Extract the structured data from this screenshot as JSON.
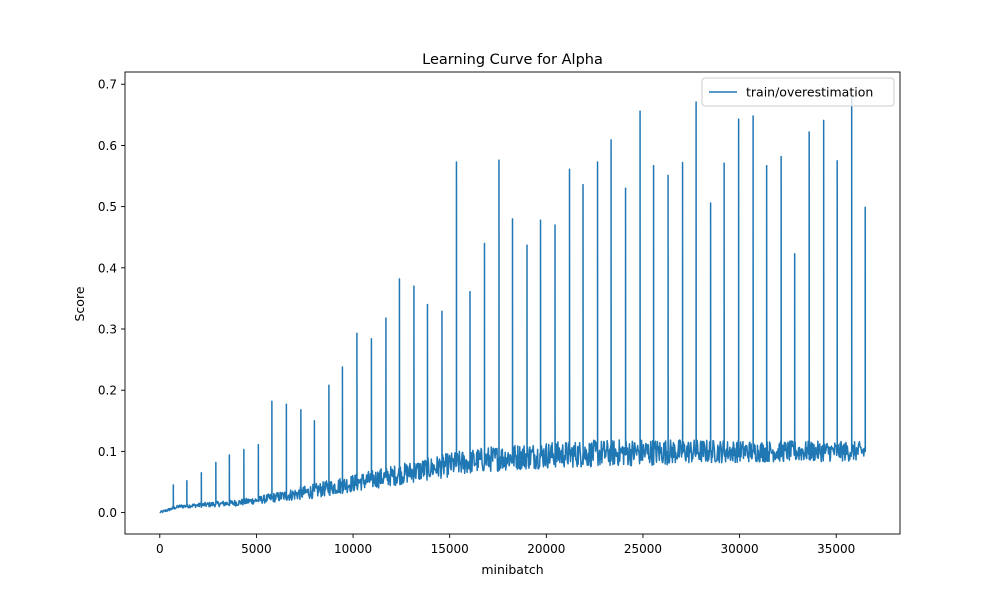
{
  "chart_data": {
    "type": "line",
    "title": "Learning Curve for Alpha",
    "xlabel": "minibatch",
    "ylabel": "Score",
    "xlim": [
      -1800,
      38300
    ],
    "ylim": [
      -0.035,
      0.72
    ],
    "xticks": [
      0,
      5000,
      10000,
      15000,
      20000,
      25000,
      30000,
      35000
    ],
    "xtick_labels": [
      "0",
      "5000",
      "10000",
      "15000",
      "20000",
      "25000",
      "30000",
      "35000"
    ],
    "yticks": [
      0.0,
      0.1,
      0.2,
      0.3,
      0.4,
      0.5,
      0.6,
      0.7
    ],
    "ytick_labels": [
      "0.0",
      "0.1",
      "0.2",
      "0.3",
      "0.4",
      "0.5",
      "0.6",
      "0.7"
    ],
    "grid": false,
    "legend_position": "top-right",
    "series": [
      {
        "name": "train/overestimation",
        "color": "#1f77b4",
        "baseline": {
          "x": [
            0,
            1000,
            2000,
            3000,
            4000,
            5000,
            6000,
            7000,
            8000,
            9000,
            10000,
            11000,
            12000,
            13000,
            14000,
            15000,
            16000,
            17000,
            18000,
            19000,
            20000,
            22000,
            24000,
            26000,
            28000,
            30000,
            32000,
            34000,
            36500
          ],
          "y": [
            0.0,
            0.01,
            0.012,
            0.014,
            0.016,
            0.02,
            0.025,
            0.03,
            0.035,
            0.042,
            0.048,
            0.054,
            0.06,
            0.066,
            0.072,
            0.078,
            0.083,
            0.087,
            0.09,
            0.092,
            0.094,
            0.096,
            0.098,
            0.099,
            0.1,
            0.1,
            0.1,
            0.1,
            0.1
          ]
        },
        "noise_amplitude": {
          "x": [
            0,
            5000,
            8000,
            15000,
            20000,
            25000,
            30000,
            36500
          ],
          "y": [
            0.002,
            0.006,
            0.012,
            0.02,
            0.022,
            0.022,
            0.018,
            0.016
          ]
        },
        "spikes": {
          "x": [
            700,
            1400,
            2150,
            2900,
            3600,
            4350,
            5100,
            5800,
            6550,
            7300,
            8000,
            8750,
            9450,
            10200,
            10950,
            11700,
            12400,
            13150,
            13850,
            14600,
            15350,
            16050,
            16800,
            17550,
            18250,
            19000,
            19700,
            20450,
            21200,
            21900,
            22650,
            23350,
            24100,
            24850,
            25550,
            26300,
            27050,
            27750,
            28500,
            29200,
            29950,
            30700,
            31400,
            32150,
            32850,
            33600,
            34350,
            35050,
            35800,
            36500
          ],
          "y": [
            0.045,
            0.052,
            0.065,
            0.082,
            0.094,
            0.103,
            0.111,
            0.182,
            0.177,
            0.168,
            0.15,
            0.208,
            0.238,
            0.293,
            0.284,
            0.318,
            0.382,
            0.37,
            0.34,
            0.329,
            0.573,
            0.361,
            0.44,
            0.576,
            0.48,
            0.437,
            0.478,
            0.47,
            0.561,
            0.536,
            0.573,
            0.609,
            0.53,
            0.656,
            0.567,
            0.551,
            0.572,
            0.671,
            0.506,
            0.571,
            0.643,
            0.648,
            0.567,
            0.582,
            0.423,
            0.622,
            0.641,
            0.575,
            0.685,
            0.499
          ]
        }
      }
    ]
  }
}
